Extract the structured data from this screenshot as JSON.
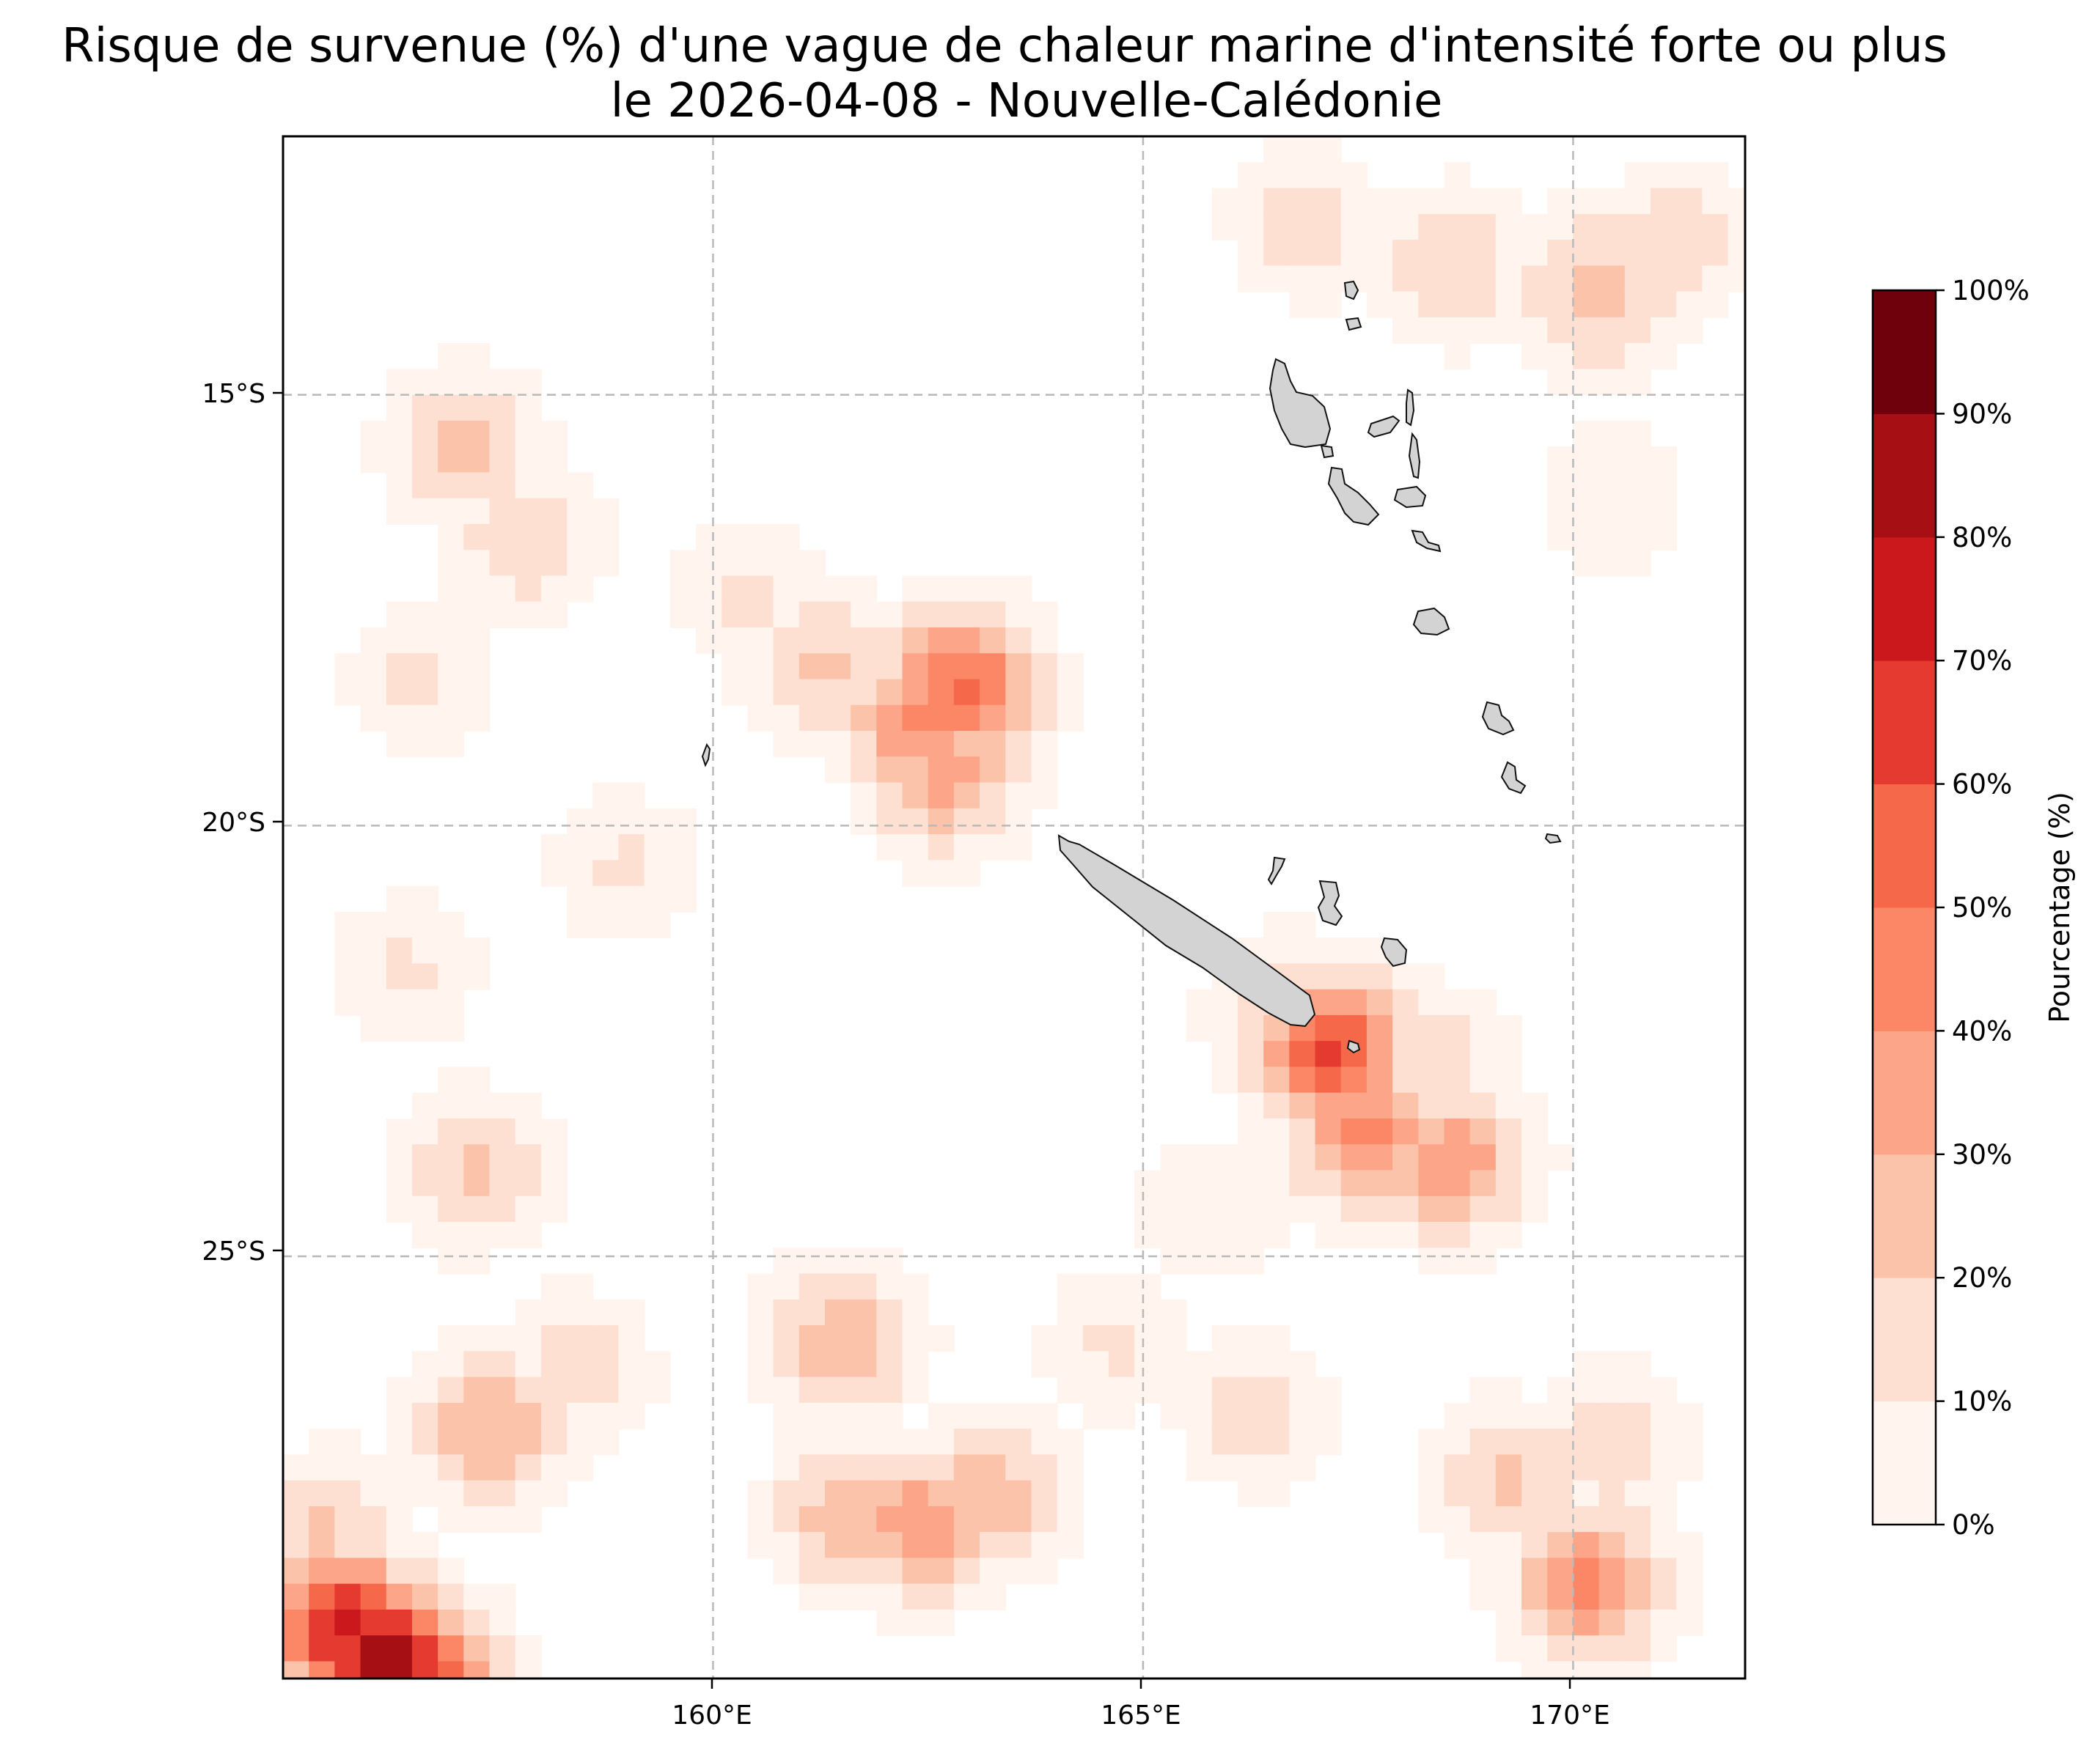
{
  "map": {
    "title_line1": "Risque de survenue (%) d'une vague de chaleur marine d'intensité forte ou plus",
    "title_line2": "le 2026-04-08 - Nouvelle-Calédonie",
    "extent": {
      "lon_min": 155,
      "lon_max": 172,
      "lat_min": -29.9,
      "lat_max": -12
    },
    "grid": true,
    "x_ticks": [
      {
        "lon": 160,
        "label": "160°E"
      },
      {
        "lon": 165,
        "label": "165°E"
      },
      {
        "lon": 170,
        "label": "170°E"
      }
    ],
    "y_ticks": [
      {
        "lat": -15,
        "label": "15°S"
      },
      {
        "lat": -20,
        "label": "20°S"
      },
      {
        "lat": -25,
        "label": "25°S"
      }
    ],
    "land_color": "#d3d3d3",
    "hotspots": [
      {
        "lon": 161.3,
        "lat": -18.2,
        "value": 22
      },
      {
        "lon": 162.4,
        "lat": -18.8,
        "value": 42
      },
      {
        "lon": 162.9,
        "lat": -18.4,
        "value": 55
      },
      {
        "lon": 162.7,
        "lat": -19.4,
        "value": 35
      },
      {
        "lon": 160.4,
        "lat": -17.3,
        "value": 12
      },
      {
        "lon": 157.1,
        "lat": -15.6,
        "value": 25
      },
      {
        "lon": 157.8,
        "lat": -16.7,
        "value": 18
      },
      {
        "lon": 156.6,
        "lat": -18.3,
        "value": 12
      },
      {
        "lon": 168.6,
        "lat": -13.5,
        "value": 20
      },
      {
        "lon": 170.3,
        "lat": -13.8,
        "value": 28
      },
      {
        "lon": 171.2,
        "lat": -13.2,
        "value": 18
      },
      {
        "lon": 166.9,
        "lat": -13.0,
        "value": 15
      },
      {
        "lon": 170.5,
        "lat": -16.2,
        "value": 10
      },
      {
        "lon": 167.2,
        "lat": -22.6,
        "value": 62
      },
      {
        "lon": 167.6,
        "lat": -23.6,
        "value": 45
      },
      {
        "lon": 168.6,
        "lat": -23.9,
        "value": 40
      },
      {
        "lon": 168.3,
        "lat": -22.8,
        "value": 20
      },
      {
        "lon": 166.6,
        "lat": -22.1,
        "value": 15
      },
      {
        "lon": 161.5,
        "lat": -26.0,
        "value": 28
      },
      {
        "lon": 161.6,
        "lat": -28.0,
        "value": 30
      },
      {
        "lon": 162.4,
        "lat": -28.1,
        "value": 38
      },
      {
        "lon": 163.2,
        "lat": -27.8,
        "value": 28
      },
      {
        "lon": 170.2,
        "lat": -28.8,
        "value": 45
      },
      {
        "lon": 169.2,
        "lat": -27.6,
        "value": 22
      },
      {
        "lon": 170.4,
        "lat": -27.2,
        "value": 18
      },
      {
        "lon": 166.3,
        "lat": -26.8,
        "value": 15
      },
      {
        "lon": 155.7,
        "lat": -29.3,
        "value": 75
      },
      {
        "lon": 156.2,
        "lat": -29.7,
        "value": 95
      },
      {
        "lon": 156.6,
        "lat": -29.9,
        "value": 65
      },
      {
        "lon": 155.5,
        "lat": -28.2,
        "value": 22
      },
      {
        "lon": 157.4,
        "lat": -27.0,
        "value": 30
      },
      {
        "lon": 157.2,
        "lat": -24.0,
        "value": 22
      },
      {
        "lon": 156.4,
        "lat": -21.7,
        "value": 12
      },
      {
        "lon": 158.4,
        "lat": -26.3,
        "value": 15
      },
      {
        "lon": 164.7,
        "lat": -26.0,
        "value": 12
      },
      {
        "lon": 165.8,
        "lat": -24.5,
        "value": 10
      },
      {
        "lon": 159.0,
        "lat": -20.5,
        "value": 12
      }
    ]
  },
  "colorbar": {
    "title": "Pourcentage (%)",
    "levels": [
      0,
      10,
      20,
      30,
      40,
      50,
      60,
      70,
      80,
      90,
      100
    ],
    "labels": [
      "0%",
      "10%",
      "20%",
      "30%",
      "40%",
      "50%",
      "60%",
      "70%",
      "80%",
      "90%",
      "100%"
    ],
    "colors": [
      "#fff4ee",
      "#fee0d3",
      "#fcc3ab",
      "#fca588",
      "#fb8767",
      "#f5694a",
      "#e43a30",
      "#cb181d",
      "#a60f14",
      "#6e010b"
    ]
  }
}
